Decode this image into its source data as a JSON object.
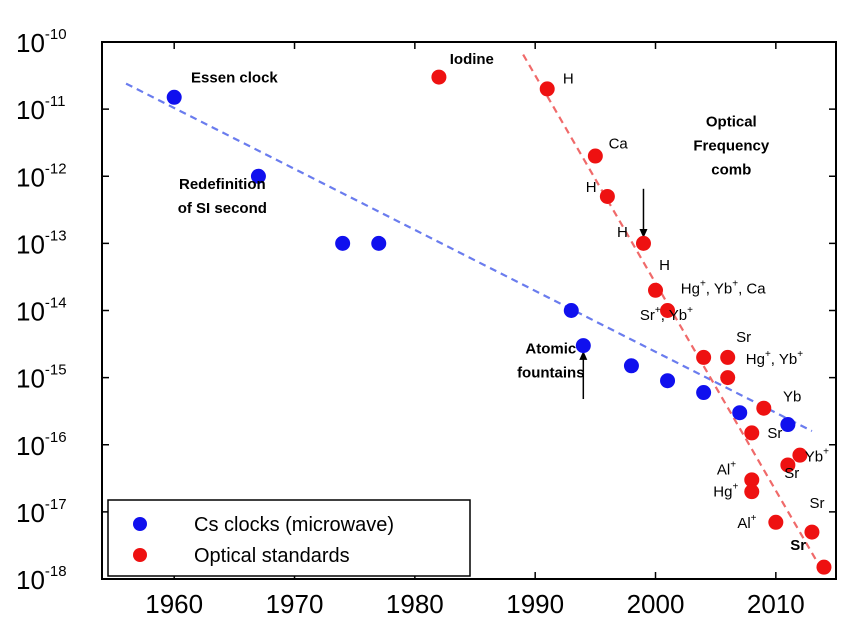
{
  "chart_data": {
    "type": "scatter",
    "title": "",
    "xlabel": "",
    "ylabel": "",
    "xlim": [
      1954,
      2015
    ],
    "ylim_exponent": [
      -18,
      -10
    ],
    "y_scale": "log",
    "grid": false,
    "legend_position": "bottom-left",
    "x_ticks": [
      "1960",
      "1970",
      "1980",
      "1990",
      "2000",
      "2010"
    ],
    "y_ticks": [
      {
        "base": "10",
        "exp": "-10"
      },
      {
        "base": "10",
        "exp": "-11"
      },
      {
        "base": "10",
        "exp": "-12"
      },
      {
        "base": "10",
        "exp": "-13"
      },
      {
        "base": "10",
        "exp": "-14"
      },
      {
        "base": "10",
        "exp": "-15"
      },
      {
        "base": "10",
        "exp": "-16"
      },
      {
        "base": "10",
        "exp": "-17"
      },
      {
        "base": "10",
        "exp": "-18"
      }
    ],
    "series": [
      {
        "name": "Cs clocks (microwave)",
        "color": "#1010ee",
        "points": [
          {
            "x": 1960,
            "y": 1.5e-11
          },
          {
            "x": 1967,
            "y": 1e-12
          },
          {
            "x": 1974,
            "y": 1e-13
          },
          {
            "x": 1977,
            "y": 1e-13
          },
          {
            "x": 1993,
            "y": 1e-14
          },
          {
            "x": 1994,
            "y": 3e-15
          },
          {
            "x": 1998,
            "y": 1.5e-15
          },
          {
            "x": 2001,
            "y": 9e-16
          },
          {
            "x": 2004,
            "y": 6e-16
          },
          {
            "x": 2007,
            "y": 3e-16
          },
          {
            "x": 2011,
            "y": 2e-16
          }
        ],
        "trend": {
          "color": "#6a7cee",
          "from": {
            "x": 1956,
            "y": 2.4e-11
          },
          "to": {
            "x": 2013,
            "y": 1.6e-16
          }
        }
      },
      {
        "name": "Optical standards",
        "color": "#ee1111",
        "points": [
          {
            "x": 1982,
            "y": 3e-11,
            "label": "Iodine"
          },
          {
            "x": 1991,
            "y": 2e-11,
            "label": "H"
          },
          {
            "x": 1995,
            "y": 2e-12,
            "label": "Ca"
          },
          {
            "x": 1996,
            "y": 5e-13,
            "label": "H"
          },
          {
            "x": 1999,
            "y": 1e-13,
            "label": "H"
          },
          {
            "x": 2000,
            "y": 2e-14
          },
          {
            "x": 2001,
            "y": 1e-14
          },
          {
            "x": 2004,
            "y": 2e-15
          },
          {
            "x": 2006,
            "y": 2e-15
          },
          {
            "x": 2006,
            "y": 1e-15
          },
          {
            "x": 2009,
            "y": 3.5e-16
          },
          {
            "x": 2008,
            "y": 1.5e-16
          },
          {
            "x": 2012,
            "y": 7e-17
          },
          {
            "x": 2011,
            "y": 5e-17
          },
          {
            "x": 2008,
            "y": 3e-17
          },
          {
            "x": 2008,
            "y": 2e-17
          },
          {
            "x": 2010,
            "y": 7e-18
          },
          {
            "x": 2013,
            "y": 5e-18
          },
          {
            "x": 2014,
            "y": 1.5e-18
          }
        ],
        "trend": {
          "color": "#f06a6a",
          "from": {
            "x": 1989,
            "y": 6.5e-11
          },
          "to": {
            "x": 2014,
            "y": 1.2e-18
          }
        }
      }
    ],
    "point_labels": [
      {
        "parts": [
          {
            "t": "H"
          }
        ],
        "x": 1992.3,
        "y": 2.4e-11
      },
      {
        "parts": [
          {
            "t": "Ca"
          }
        ],
        "x": 1996.1,
        "y": 2.6e-12
      },
      {
        "parts": [
          {
            "t": "H"
          }
        ],
        "x": 1994.2,
        "y": 5.8e-13
      },
      {
        "parts": [
          {
            "t": "H"
          }
        ],
        "x": 1996.8,
        "y": 1.25e-13
      },
      {
        "parts": [
          {
            "t": "H"
          }
        ],
        "x": 2000.3,
        "y": 4e-14
      },
      {
        "parts": [
          {
            "t": "Hg"
          },
          {
            "t": "+",
            "sup": true
          },
          {
            "t": ", Yb"
          },
          {
            "t": "+",
            "sup": true
          },
          {
            "t": ", Ca"
          }
        ],
        "x": 2002.1,
        "y": 1.8e-14
      },
      {
        "parts": [
          {
            "t": "Sr"
          },
          {
            "t": "+",
            "sup": true
          },
          {
            "t": ", Yb"
          },
          {
            "t": "+",
            "sup": true
          }
        ],
        "x": 1998.7,
        "y": 7.2e-15
      },
      {
        "parts": [
          {
            "t": "Sr"
          }
        ],
        "x": 2006.7,
        "y": 3.4e-15
      },
      {
        "parts": [
          {
            "t": "Hg"
          },
          {
            "t": "+",
            "sup": true
          },
          {
            "t": ", Yb"
          },
          {
            "t": "+",
            "sup": true
          }
        ],
        "x": 2007.5,
        "y": 1.6e-15
      },
      {
        "parts": [
          {
            "t": "Yb"
          }
        ],
        "x": 2010.6,
        "y": 4.4e-16
      },
      {
        "parts": [
          {
            "t": "Sr"
          }
        ],
        "x": 2009.3,
        "y": 1.25e-16
      },
      {
        "parts": [
          {
            "t": "Yb"
          },
          {
            "t": "+",
            "sup": true
          }
        ],
        "x": 2012.4,
        "y": 5.6e-17
      },
      {
        "parts": [
          {
            "t": "Al"
          },
          {
            "t": "+",
            "sup": true
          }
        ],
        "x": 2005.1,
        "y": 3.6e-17
      },
      {
        "parts": [
          {
            "t": "Sr"
          }
        ],
        "x": 2010.7,
        "y": 3.2e-17
      },
      {
        "parts": [
          {
            "t": "Hg"
          },
          {
            "t": "+",
            "sup": true
          }
        ],
        "x": 2004.8,
        "y": 1.7e-17
      },
      {
        "parts": [
          {
            "t": "Sr"
          }
        ],
        "x": 2012.8,
        "y": 1.15e-17
      },
      {
        "parts": [
          {
            "t": "Al"
          },
          {
            "t": "+",
            "sup": true
          }
        ],
        "x": 2006.8,
        "y": 5.8e-18
      },
      {
        "parts": [
          {
            "t": "Sr",
            "bold": true
          }
        ],
        "x": 2011.2,
        "y": 2.7e-18
      }
    ],
    "annotations": [
      {
        "lines": [
          "Essen clock"
        ],
        "x": 1961.4,
        "y": 2.5e-11,
        "align": "start"
      },
      {
        "lines": [
          "Iodine"
        ],
        "x": 1982.9,
        "y": 4.7e-11,
        "align": "start",
        "weight": "normal"
      },
      {
        "lines": [
          "Redefinition",
          "of SI second"
        ],
        "x": 1964.0,
        "y": 6.5e-13,
        "align": "middle"
      },
      {
        "lines": [
          "Optical",
          "Frequency",
          "comb"
        ],
        "x": 2006.3,
        "y": 5.5e-12,
        "align": "middle"
      },
      {
        "lines": [
          "Atomic",
          "fountains"
        ],
        "x": 1991.3,
        "y": 2.3e-15,
        "align": "middle"
      }
    ],
    "arrows": [
      {
        "name": "comb-arrow",
        "from": {
          "x": 1999,
          "y": 6.5e-13
        },
        "to": {
          "x": 1999,
          "y": 1.2e-13
        }
      },
      {
        "name": "fountain-arrow",
        "from": {
          "x": 1994,
          "y": 4.8e-16
        },
        "to": {
          "x": 1994,
          "y": 2.5e-15
        }
      }
    ]
  }
}
